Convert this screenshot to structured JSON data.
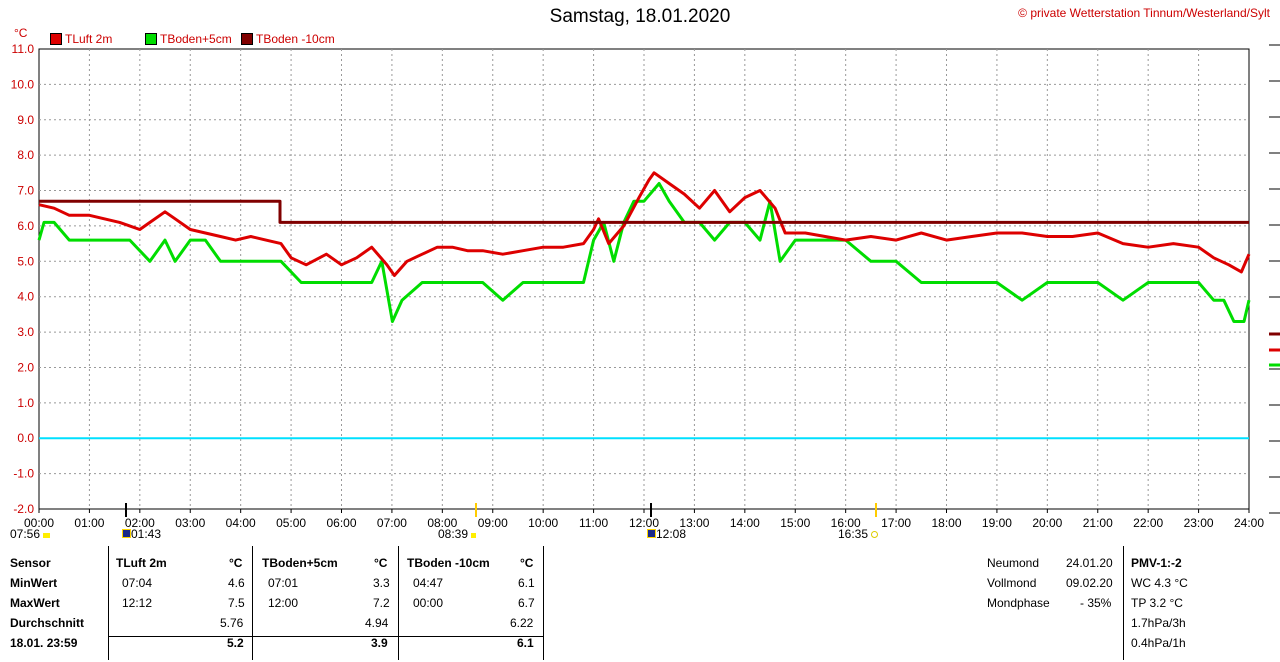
{
  "header": {
    "title": "Samstag, 18.01.2020",
    "credit": "© private Wetterstation Tinnum/Westerland/Sylt",
    "unit": "°C"
  },
  "legend": [
    {
      "label": "TLuft 2m",
      "color": "#dd0000"
    },
    {
      "label": "TBoden+5cm",
      "color": "#00dd00"
    },
    {
      "label": "TBoden -10cm",
      "color": "#800000"
    }
  ],
  "markers": {
    "sunrise": "08:39",
    "sunset": "16:35",
    "moonrise": "12:08",
    "moonset": "01:43",
    "prev_sunset": "07:56"
  },
  "chart_data": {
    "type": "line",
    "title": "Samstag, 18.01.2020",
    "ylabel": "°C",
    "ylim": [
      -2.0,
      11.0
    ],
    "yticks": [
      "11.0",
      "10.0",
      "9.0",
      "8.0",
      "7.0",
      "6.0",
      "5.0",
      "4.0",
      "3.0",
      "2.0",
      "1.0",
      "0.0",
      "-1.0",
      "-2.0"
    ],
    "xlim": [
      0,
      24
    ],
    "xticks": [
      "00:00",
      "01:00",
      "02:00",
      "03:00",
      "04:00",
      "05:00",
      "06:00",
      "07:00",
      "08:00",
      "09:00",
      "10:00",
      "11:00",
      "12:00",
      "13:00",
      "14:00",
      "15:00",
      "16:00",
      "17:00",
      "18:00",
      "19:00",
      "20:00",
      "21:00",
      "22:00",
      "23:00",
      "24:00"
    ],
    "grid": true,
    "zero_line_color": "#00e0ff",
    "series": [
      {
        "name": "TLuft 2m",
        "color": "#dd0000",
        "x": [
          0,
          0.3,
          0.6,
          1.0,
          1.6,
          2.0,
          2.2,
          2.5,
          2.7,
          3.0,
          3.3,
          3.6,
          3.9,
          4.2,
          4.5,
          4.8,
          5.0,
          5.3,
          5.7,
          6.0,
          6.3,
          6.6,
          6.9,
          7.05,
          7.3,
          7.6,
          7.9,
          8.2,
          8.5,
          8.8,
          9.2,
          9.6,
          10.0,
          10.4,
          10.8,
          11.0,
          11.1,
          11.3,
          11.6,
          11.9,
          12.1,
          12.2,
          12.5,
          12.8,
          13.1,
          13.4,
          13.7,
          14.0,
          14.3,
          14.6,
          14.8,
          15.2,
          16.0,
          16.5,
          17.0,
          17.5,
          18.0,
          18.5,
          19.0,
          19.5,
          20.0,
          20.5,
          21.0,
          21.5,
          22.0,
          22.5,
          23.0,
          23.3,
          23.6,
          23.85,
          24.0
        ],
        "y": [
          6.6,
          6.5,
          6.3,
          6.3,
          6.1,
          5.9,
          6.1,
          6.4,
          6.2,
          5.9,
          5.8,
          5.7,
          5.6,
          5.7,
          5.6,
          5.5,
          5.1,
          4.9,
          5.2,
          4.9,
          5.1,
          5.4,
          4.9,
          4.6,
          5.0,
          5.2,
          5.4,
          5.4,
          5.3,
          5.3,
          5.2,
          5.3,
          5.4,
          5.4,
          5.5,
          5.9,
          6.2,
          5.5,
          6.0,
          6.8,
          7.3,
          7.5,
          7.2,
          6.9,
          6.5,
          7.0,
          6.4,
          6.8,
          7.0,
          6.5,
          5.8,
          5.8,
          5.6,
          5.7,
          5.6,
          5.8,
          5.6,
          5.7,
          5.8,
          5.8,
          5.7,
          5.7,
          5.8,
          5.5,
          5.4,
          5.5,
          5.4,
          5.1,
          4.9,
          4.7,
          5.2
        ]
      },
      {
        "name": "TBoden+5cm",
        "color": "#00dd00",
        "x": [
          0,
          0.1,
          0.3,
          0.6,
          1.0,
          1.8,
          2.2,
          2.5,
          2.7,
          3.0,
          3.3,
          3.6,
          3.8,
          4.2,
          4.8,
          5.2,
          5.6,
          6.0,
          6.6,
          6.8,
          7.01,
          7.2,
          7.6,
          8.0,
          8.4,
          8.8,
          9.2,
          9.6,
          10.0,
          10.4,
          10.8,
          11.0,
          11.2,
          11.4,
          11.6,
          11.8,
          12.0,
          12.3,
          12.5,
          12.8,
          13.1,
          13.4,
          13.7,
          14.0,
          14.3,
          14.5,
          14.7,
          15.0,
          15.6,
          16.0,
          16.5,
          17.0,
          17.5,
          18.0,
          18.5,
          19.0,
          19.5,
          20.0,
          20.5,
          21.0,
          21.5,
          22.0,
          22.5,
          23.0,
          23.3,
          23.5,
          23.7,
          23.9,
          24.0
        ],
        "y": [
          5.6,
          6.1,
          6.1,
          5.6,
          5.6,
          5.6,
          5.0,
          5.6,
          5.0,
          5.6,
          5.6,
          5.0,
          5.0,
          5.0,
          5.0,
          4.4,
          4.4,
          4.4,
          4.4,
          5.0,
          3.3,
          3.9,
          4.4,
          4.4,
          4.4,
          4.4,
          3.9,
          4.4,
          4.4,
          4.4,
          4.4,
          5.6,
          6.1,
          5.0,
          6.1,
          6.7,
          6.7,
          7.2,
          6.7,
          6.1,
          6.1,
          5.6,
          6.1,
          6.1,
          5.6,
          6.7,
          5.0,
          5.6,
          5.6,
          5.6,
          5.0,
          5.0,
          4.4,
          4.4,
          4.4,
          4.4,
          3.9,
          4.4,
          4.4,
          4.4,
          3.9,
          4.4,
          4.4,
          4.4,
          3.9,
          3.9,
          3.3,
          3.3,
          3.9
        ]
      },
      {
        "name": "TBoden -10cm",
        "color": "#800000",
        "x": [
          0,
          4.78,
          4.78,
          24
        ],
        "y": [
          6.7,
          6.7,
          6.1,
          6.1
        ]
      }
    ]
  },
  "stats": {
    "row_labels": [
      "Sensor",
      "MinWert",
      "MaxWert",
      "Durchschnitt",
      "18.01. 23:59"
    ],
    "columns": [
      {
        "name": "TLuft 2m",
        "unit": "°C",
        "min_time": "07:04",
        "min": "4.6",
        "max_time": "12:12",
        "max": "7.5",
        "avg": "5.76",
        "current": "5.2"
      },
      {
        "name": "TBoden+5cm",
        "unit": "°C",
        "min_time": "07:01",
        "min": "3.3",
        "max_time": "12:00",
        "max": "7.2",
        "avg": "4.94",
        "current": "3.9"
      },
      {
        "name": "TBoden -10cm",
        "unit": "°C",
        "min_time": "04:47",
        "min": "6.1",
        "max_time": "00:00",
        "max": "6.7",
        "avg": "6.22",
        "current": "6.1"
      }
    ],
    "moon": [
      {
        "label": "Neumond",
        "value": "24.01.20"
      },
      {
        "label": "Vollmond",
        "value": "09.02.20"
      },
      {
        "label": "Mondphase",
        "value": "- 35%"
      }
    ],
    "pmv": {
      "title": "PMV-1:-2",
      "lines": [
        "WC 4.3 °C",
        "TP 3.2 °C",
        "1.7hPa/3h",
        "0.4hPa/1h"
      ]
    }
  }
}
